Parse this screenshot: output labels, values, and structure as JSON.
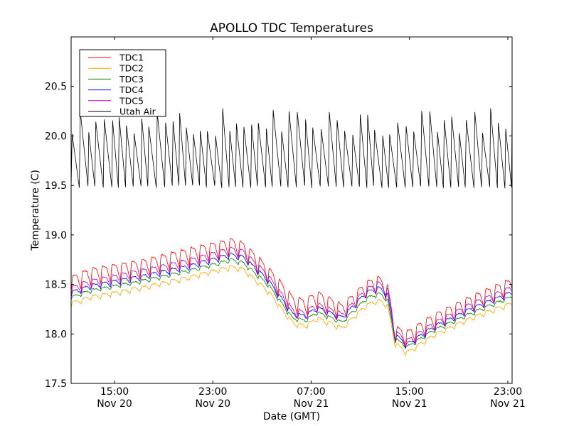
{
  "chart_data": {
    "type": "line",
    "title": "APOLLO TDC Temperatures",
    "xlabel": "Date (GMT)",
    "ylabel": "Temperature (C)",
    "x_unit": "hours since Nov 20 00:00 GMT",
    "xlim": [
      11.47,
      47.35
    ],
    "ylim": [
      17.5,
      21.0
    ],
    "grid": false,
    "legend_position": "top-left",
    "yticks": [
      17.5,
      18.0,
      18.5,
      19.0,
      19.5,
      20.0,
      20.5
    ],
    "ytick_labels": [
      "17.5",
      "18.0",
      "18.5",
      "19.0",
      "19.5",
      "20.0",
      "20.5"
    ],
    "xticks": [
      15,
      23,
      31,
      39,
      47
    ],
    "xtick_labels": [
      {
        "time": "15:00",
        "date": "Nov 20"
      },
      {
        "time": "23:00",
        "date": "Nov 20"
      },
      {
        "time": "07:00",
        "date": "Nov 21"
      },
      {
        "time": "15:00",
        "date": "Nov 21"
      },
      {
        "time": "23:00",
        "date": "Nov 21"
      }
    ],
    "series": [
      {
        "name": "TDC1",
        "color": "#ff0000",
        "trend": [
          [
            11.47,
            18.5
          ],
          [
            13,
            18.58
          ],
          [
            17,
            18.66
          ],
          [
            21,
            18.78
          ],
          [
            24.5,
            18.88
          ],
          [
            25.5,
            18.84
          ],
          [
            27.5,
            18.6
          ],
          [
            29.5,
            18.3
          ],
          [
            30.5,
            18.27
          ],
          [
            31.5,
            18.35
          ],
          [
            33.5,
            18.22
          ],
          [
            35.5,
            18.45
          ],
          [
            36.5,
            18.5
          ],
          [
            37.2,
            18.42
          ],
          [
            37.8,
            18.0
          ],
          [
            38.8,
            17.95
          ],
          [
            41,
            18.12
          ],
          [
            44,
            18.3
          ],
          [
            47.35,
            18.48
          ]
        ],
        "ripple_amp": 0.09,
        "ripple_period_h": 0.8
      },
      {
        "name": "TDC2",
        "color": "#ffa500",
        "trend": [
          [
            11.47,
            18.3
          ],
          [
            13,
            18.36
          ],
          [
            17,
            18.45
          ],
          [
            21,
            18.56
          ],
          [
            24.5,
            18.67
          ],
          [
            25.5,
            18.64
          ],
          [
            27.5,
            18.42
          ],
          [
            29.5,
            18.1
          ],
          [
            30.5,
            18.07
          ],
          [
            31.5,
            18.15
          ],
          [
            33.5,
            18.05
          ],
          [
            35.5,
            18.28
          ],
          [
            36.5,
            18.33
          ],
          [
            37.2,
            18.28
          ],
          [
            37.8,
            17.9
          ],
          [
            38.8,
            17.8
          ],
          [
            41,
            17.98
          ],
          [
            44,
            18.15
          ],
          [
            47.35,
            18.3
          ]
        ],
        "ripple_amp": 0.025,
        "ripple_period_h": 0.8
      },
      {
        "name": "TDC3",
        "color": "#008000",
        "trend": [
          [
            11.47,
            18.36
          ],
          [
            13,
            18.43
          ],
          [
            17,
            18.52
          ],
          [
            21,
            18.63
          ],
          [
            24.5,
            18.74
          ],
          [
            25.5,
            18.71
          ],
          [
            27.5,
            18.49
          ],
          [
            29.5,
            18.15
          ],
          [
            30.5,
            18.13
          ],
          [
            31.5,
            18.21
          ],
          [
            33.5,
            18.11
          ],
          [
            35.5,
            18.35
          ],
          [
            36.5,
            18.4
          ],
          [
            37.2,
            18.34
          ],
          [
            37.8,
            17.95
          ],
          [
            38.8,
            17.86
          ],
          [
            41,
            18.03
          ],
          [
            44,
            18.2
          ],
          [
            47.35,
            18.37
          ]
        ],
        "ripple_amp": 0.02,
        "ripple_period_h": 0.8
      },
      {
        "name": "TDC4",
        "color": "#0000ff",
        "trend": [
          [
            11.47,
            18.4
          ],
          [
            13,
            18.47
          ],
          [
            17,
            18.56
          ],
          [
            21,
            18.67
          ],
          [
            24.5,
            18.79
          ],
          [
            25.5,
            18.76
          ],
          [
            27.5,
            18.53
          ],
          [
            29.5,
            18.19
          ],
          [
            30.5,
            18.17
          ],
          [
            31.5,
            18.25
          ],
          [
            33.5,
            18.15
          ],
          [
            35.5,
            18.4
          ],
          [
            36.5,
            18.45
          ],
          [
            37.2,
            18.39
          ],
          [
            37.8,
            17.98
          ],
          [
            38.8,
            17.88
          ],
          [
            41,
            18.06
          ],
          [
            44,
            18.24
          ],
          [
            47.35,
            18.41
          ]
        ],
        "ripple_amp": 0.03,
        "ripple_period_h": 0.8
      },
      {
        "name": "TDC5",
        "color": "#bf00bf",
        "trend": [
          [
            11.47,
            18.43
          ],
          [
            13,
            18.5
          ],
          [
            17,
            18.6
          ],
          [
            21,
            18.71
          ],
          [
            24.5,
            18.83
          ],
          [
            25.5,
            18.8
          ],
          [
            27.5,
            18.56
          ],
          [
            29.5,
            18.21
          ],
          [
            30.5,
            18.19
          ],
          [
            31.5,
            18.27
          ],
          [
            33.5,
            18.17
          ],
          [
            35.5,
            18.42
          ],
          [
            36.5,
            18.48
          ],
          [
            37.2,
            18.42
          ],
          [
            37.8,
            18.0
          ],
          [
            38.8,
            17.9
          ],
          [
            41,
            18.08
          ],
          [
            44,
            18.27
          ],
          [
            47.35,
            18.44
          ]
        ],
        "ripple_amp": 0.05,
        "ripple_period_h": 0.8
      },
      {
        "name": "Utah Air",
        "color": "#000000",
        "low": 19.5,
        "high": 20.15,
        "peak_range": [
          20.0,
          20.28
        ],
        "cycle_period_h": 0.62,
        "dip_min": 19.38
      }
    ]
  }
}
